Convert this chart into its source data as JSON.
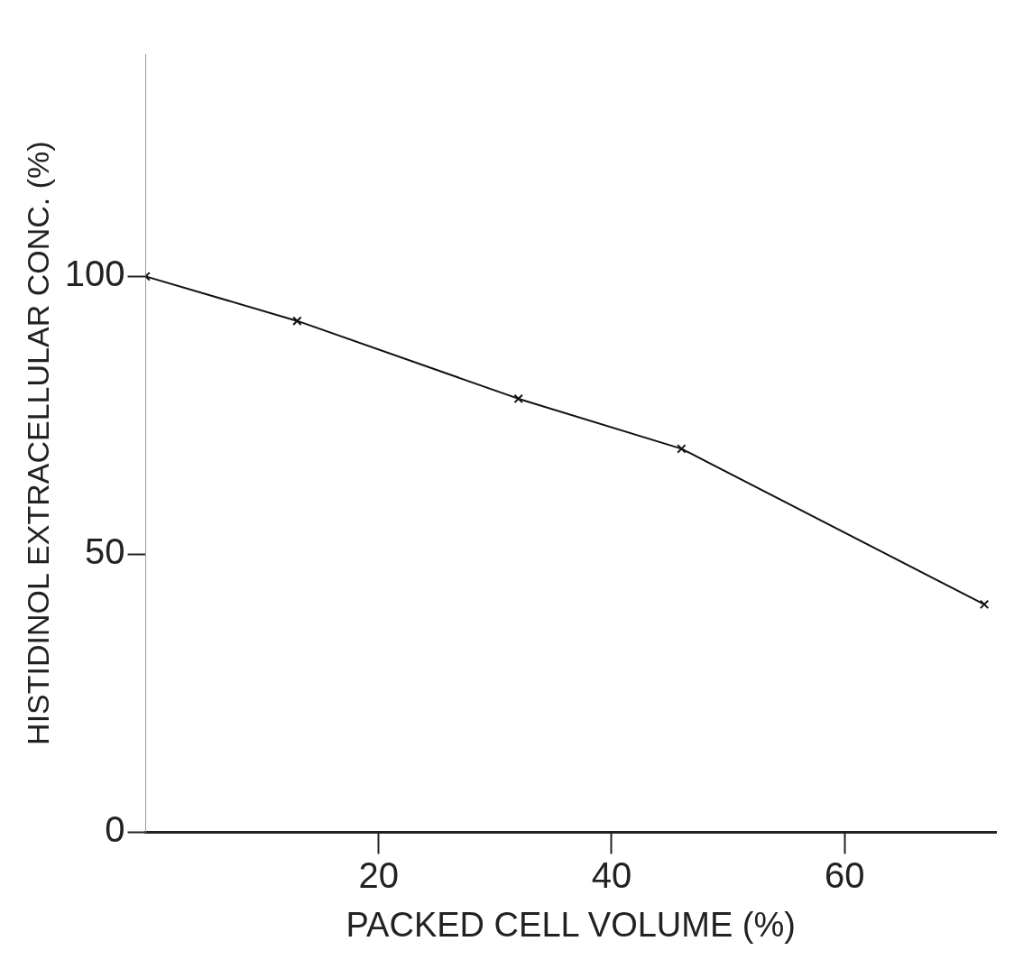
{
  "chart_data": {
    "type": "line",
    "xlabel": "PACKED CELL VOLUME (%)",
    "ylabel": "HISTIDINOL EXTRACELLULAR CONC. (%)",
    "x": [
      0,
      13,
      32,
      46,
      72
    ],
    "series": [
      {
        "color": "#111111",
        "values": [
          100,
          92,
          78,
          69,
          41
        ]
      }
    ],
    "xlim": [
      0,
      73
    ],
    "ylim": [
      0,
      140
    ],
    "xticks": [
      20,
      40,
      60
    ],
    "yticks": [
      0,
      50,
      100
    ],
    "grid": false,
    "legend": false,
    "marker": "cross",
    "line_style": "solid"
  }
}
